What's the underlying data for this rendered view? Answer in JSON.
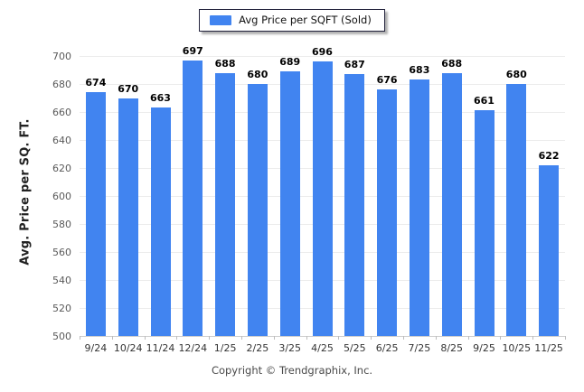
{
  "legend": {
    "label": "Avg Price per SQFT (Sold)"
  },
  "footer": {
    "copyright": "Copyright © Trendgraphix, Inc."
  },
  "colors": {
    "bar": "#4184f0",
    "grid": "#ececec",
    "baseline": "#cfcfcf",
    "boundary_tick": "#bdbdbd",
    "y_tick_text": "#5a5a5a",
    "x_tick_text": "#333333",
    "value_label": "#000000",
    "legend_border": "#23233d",
    "footer_text": "#4a4a4a"
  },
  "chart_data": {
    "type": "bar",
    "title": "",
    "categories": [
      "9/24",
      "10/24",
      "11/24",
      "12/24",
      "1/25",
      "2/25",
      "3/25",
      "4/25",
      "5/25",
      "6/25",
      "7/25",
      "8/25",
      "9/25",
      "10/25",
      "11/25"
    ],
    "values": [
      674,
      670,
      663,
      697,
      688,
      680,
      689,
      696,
      687,
      676,
      683,
      688,
      661,
      680,
      622
    ],
    "series_name": "Avg Price per SQFT (Sold)",
    "xlabel": "",
    "ylabel": "Avg. Price per SQ. FT.",
    "ylim": [
      500,
      700
    ],
    "ytick_step": 20,
    "grid": true,
    "legend_position": "top"
  }
}
